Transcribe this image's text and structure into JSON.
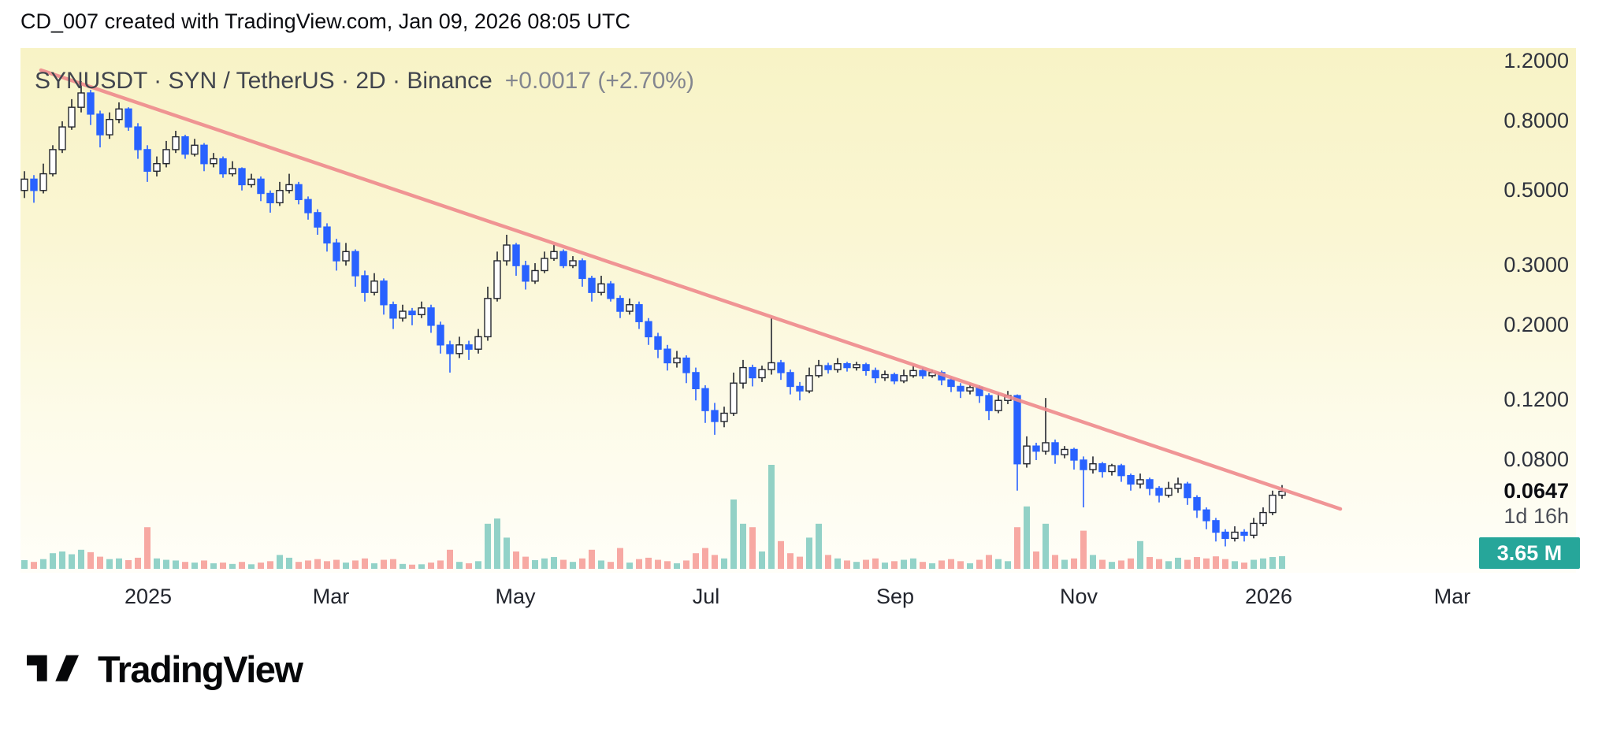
{
  "header": {
    "title": "CD_007 created with TradingView.com, Jan 09, 2026 08:05 UTC"
  },
  "chart": {
    "symbol_line": {
      "full_text": "SYNUSDT · SYN / TetherUS · 2D · Binance",
      "symbol": "SYNUSDT",
      "description": "SYN / TetherUS",
      "interval": "2D",
      "exchange": "Binance",
      "change_text": "+0.0017 (+2.70%)"
    },
    "price_scale": {
      "labels": [
        "1.2000",
        "0.8000",
        "0.5000",
        "0.3000",
        "0.2000",
        "0.1200",
        "0.0800"
      ],
      "last_price": "0.0647",
      "countdown": "1d 16h",
      "volume_label": "3.65 M"
    },
    "time_scale": [
      "2025",
      "Mar",
      "May",
      "Jul",
      "Sep",
      "Nov",
      "2026",
      "Mar"
    ],
    "colors": {
      "up_fill": "#ffffff",
      "up_border": "#23262e",
      "down": "#2962ff",
      "vol_up": "#26a69a",
      "vol_down": "#ef5350",
      "trendline": "#ef8a8d",
      "badge": "#26a69a",
      "background_top": "#f8f3c6",
      "background_bottom": "#fffef8"
    }
  },
  "chart_data": {
    "type": "candlestick+volume",
    "title": "SYNUSDT · SYN / TetherUS · 2D · Binance",
    "y_axis": {
      "scale": "log",
      "ticks": [
        1.2,
        0.8,
        0.5,
        0.3,
        0.2,
        0.12,
        0.08
      ],
      "last_price": 0.0647
    },
    "x_axis": {
      "ticks": [
        "2025",
        "Mar",
        "May",
        "Jul",
        "Sep",
        "Nov",
        "2026",
        "Mar"
      ]
    },
    "change": {
      "abs": 0.0017,
      "pct": 2.7
    },
    "current_volume_m": 3.65,
    "bar_countdown": "1d 16h",
    "trendline": {
      "from_price": 1.13,
      "to_price": 0.058
    },
    "columns": [
      "open",
      "high",
      "low",
      "close"
    ],
    "candles": [
      [
        0.5,
        0.57,
        0.475,
        0.54
      ],
      [
        0.54,
        0.555,
        0.46,
        0.5
      ],
      [
        0.5,
        0.6,
        0.49,
        0.56
      ],
      [
        0.56,
        0.68,
        0.55,
        0.66
      ],
      [
        0.66,
        0.8,
        0.645,
        0.77
      ],
      [
        0.77,
        0.93,
        0.755,
        0.88
      ],
      [
        0.88,
        1.05,
        0.85,
        0.97
      ],
      [
        0.97,
        0.99,
        0.78,
        0.84
      ],
      [
        0.84,
        0.86,
        0.67,
        0.73
      ],
      [
        0.73,
        0.85,
        0.71,
        0.81
      ],
      [
        0.81,
        0.91,
        0.79,
        0.87
      ],
      [
        0.87,
        0.88,
        0.75,
        0.77
      ],
      [
        0.77,
        0.79,
        0.62,
        0.66
      ],
      [
        0.66,
        0.68,
        0.53,
        0.57
      ],
      [
        0.57,
        0.63,
        0.55,
        0.6
      ],
      [
        0.6,
        0.7,
        0.585,
        0.66
      ],
      [
        0.66,
        0.75,
        0.645,
        0.72
      ],
      [
        0.72,
        0.73,
        0.62,
        0.64
      ],
      [
        0.64,
        0.71,
        0.63,
        0.68
      ],
      [
        0.68,
        0.69,
        0.57,
        0.6
      ],
      [
        0.6,
        0.645,
        0.585,
        0.62
      ],
      [
        0.62,
        0.63,
        0.545,
        0.56
      ],
      [
        0.56,
        0.61,
        0.55,
        0.58
      ],
      [
        0.58,
        0.585,
        0.5,
        0.52
      ],
      [
        0.52,
        0.56,
        0.51,
        0.54
      ],
      [
        0.54,
        0.55,
        0.465,
        0.49
      ],
      [
        0.49,
        0.5,
        0.43,
        0.46
      ],
      [
        0.46,
        0.53,
        0.45,
        0.5
      ],
      [
        0.5,
        0.56,
        0.49,
        0.52
      ],
      [
        0.52,
        0.53,
        0.455,
        0.47
      ],
      [
        0.47,
        0.48,
        0.41,
        0.43
      ],
      [
        0.43,
        0.44,
        0.37,
        0.39
      ],
      [
        0.39,
        0.4,
        0.33,
        0.35
      ],
      [
        0.35,
        0.36,
        0.29,
        0.31
      ],
      [
        0.31,
        0.35,
        0.3,
        0.33
      ],
      [
        0.33,
        0.335,
        0.26,
        0.28
      ],
      [
        0.28,
        0.29,
        0.235,
        0.25
      ],
      [
        0.25,
        0.285,
        0.245,
        0.27
      ],
      [
        0.27,
        0.275,
        0.215,
        0.23
      ],
      [
        0.23,
        0.235,
        0.195,
        0.21
      ],
      [
        0.21,
        0.23,
        0.205,
        0.22
      ],
      [
        0.22,
        0.225,
        0.2,
        0.215
      ],
      [
        0.215,
        0.235,
        0.21,
        0.225
      ],
      [
        0.225,
        0.23,
        0.19,
        0.2
      ],
      [
        0.2,
        0.205,
        0.165,
        0.175
      ],
      [
        0.175,
        0.18,
        0.145,
        0.165
      ],
      [
        0.165,
        0.185,
        0.16,
        0.175
      ],
      [
        0.175,
        0.18,
        0.158,
        0.17
      ],
      [
        0.17,
        0.195,
        0.165,
        0.185
      ],
      [
        0.185,
        0.26,
        0.18,
        0.24
      ],
      [
        0.24,
        0.33,
        0.235,
        0.31
      ],
      [
        0.31,
        0.37,
        0.3,
        0.345
      ],
      [
        0.345,
        0.35,
        0.28,
        0.3
      ],
      [
        0.3,
        0.31,
        0.255,
        0.27
      ],
      [
        0.27,
        0.305,
        0.265,
        0.29
      ],
      [
        0.29,
        0.33,
        0.285,
        0.315
      ],
      [
        0.315,
        0.345,
        0.31,
        0.33
      ],
      [
        0.33,
        0.335,
        0.295,
        0.3
      ],
      [
        0.3,
        0.32,
        0.295,
        0.31
      ],
      [
        0.31,
        0.315,
        0.26,
        0.275
      ],
      [
        0.275,
        0.28,
        0.235,
        0.25
      ],
      [
        0.25,
        0.28,
        0.245,
        0.265
      ],
      [
        0.265,
        0.27,
        0.235,
        0.24
      ],
      [
        0.24,
        0.245,
        0.21,
        0.22
      ],
      [
        0.22,
        0.24,
        0.215,
        0.23
      ],
      [
        0.23,
        0.235,
        0.195,
        0.205
      ],
      [
        0.205,
        0.21,
        0.175,
        0.185
      ],
      [
        0.185,
        0.19,
        0.16,
        0.17
      ],
      [
        0.17,
        0.175,
        0.147,
        0.155
      ],
      [
        0.155,
        0.168,
        0.15,
        0.16
      ],
      [
        0.16,
        0.163,
        0.135,
        0.145
      ],
      [
        0.145,
        0.15,
        0.12,
        0.13
      ],
      [
        0.13,
        0.133,
        0.103,
        0.112
      ],
      [
        0.112,
        0.118,
        0.095,
        0.104
      ],
      [
        0.104,
        0.115,
        0.1,
        0.11
      ],
      [
        0.11,
        0.145,
        0.108,
        0.135
      ],
      [
        0.135,
        0.158,
        0.13,
        0.15
      ],
      [
        0.15,
        0.153,
        0.132,
        0.14
      ],
      [
        0.14,
        0.152,
        0.136,
        0.148
      ],
      [
        0.148,
        0.21,
        0.143,
        0.155
      ],
      [
        0.155,
        0.158,
        0.138,
        0.145
      ],
      [
        0.145,
        0.148,
        0.125,
        0.132
      ],
      [
        0.132,
        0.136,
        0.12,
        0.128
      ],
      [
        0.128,
        0.15,
        0.126,
        0.142
      ],
      [
        0.142,
        0.158,
        0.14,
        0.152
      ],
      [
        0.152,
        0.155,
        0.144,
        0.148
      ],
      [
        0.148,
        0.16,
        0.145,
        0.154
      ],
      [
        0.154,
        0.156,
        0.146,
        0.15
      ],
      [
        0.15,
        0.156,
        0.147,
        0.153
      ],
      [
        0.153,
        0.155,
        0.142,
        0.147
      ],
      [
        0.147,
        0.15,
        0.135,
        0.14
      ],
      [
        0.14,
        0.147,
        0.137,
        0.143
      ],
      [
        0.143,
        0.145,
        0.134,
        0.137
      ],
      [
        0.137,
        0.148,
        0.135,
        0.142
      ],
      [
        0.142,
        0.152,
        0.14,
        0.147
      ],
      [
        0.147,
        0.15,
        0.139,
        0.142
      ],
      [
        0.142,
        0.148,
        0.14,
        0.145
      ],
      [
        0.145,
        0.147,
        0.133,
        0.138
      ],
      [
        0.138,
        0.14,
        0.127,
        0.132
      ],
      [
        0.132,
        0.135,
        0.122,
        0.128
      ],
      [
        0.128,
        0.134,
        0.125,
        0.131
      ],
      [
        0.131,
        0.133,
        0.118,
        0.124
      ],
      [
        0.124,
        0.126,
        0.105,
        0.112
      ],
      [
        0.112,
        0.126,
        0.11,
        0.12
      ],
      [
        0.12,
        0.128,
        0.117,
        0.124
      ],
      [
        0.124,
        0.125,
        0.065,
        0.078
      ],
      [
        0.078,
        0.094,
        0.076,
        0.088
      ],
      [
        0.088,
        0.09,
        0.08,
        0.085
      ],
      [
        0.085,
        0.122,
        0.083,
        0.09
      ],
      [
        0.09,
        0.092,
        0.078,
        0.083
      ],
      [
        0.083,
        0.088,
        0.081,
        0.086
      ],
      [
        0.086,
        0.087,
        0.075,
        0.08
      ],
      [
        0.08,
        0.082,
        0.058,
        0.075
      ],
      [
        0.075,
        0.082,
        0.073,
        0.078
      ],
      [
        0.078,
        0.079,
        0.071,
        0.074
      ],
      [
        0.074,
        0.078,
        0.072,
        0.077
      ],
      [
        0.077,
        0.078,
        0.069,
        0.072
      ],
      [
        0.072,
        0.073,
        0.065,
        0.068
      ],
      [
        0.068,
        0.073,
        0.066,
        0.07
      ],
      [
        0.07,
        0.071,
        0.063,
        0.066
      ],
      [
        0.066,
        0.067,
        0.06,
        0.063
      ],
      [
        0.063,
        0.069,
        0.062,
        0.066
      ],
      [
        0.066,
        0.071,
        0.064,
        0.068
      ],
      [
        0.068,
        0.069,
        0.059,
        0.062
      ],
      [
        0.062,
        0.063,
        0.054,
        0.057
      ],
      [
        0.057,
        0.058,
        0.05,
        0.053
      ],
      [
        0.053,
        0.054,
        0.046,
        0.049
      ],
      [
        0.049,
        0.05,
        0.0445,
        0.047
      ],
      [
        0.047,
        0.051,
        0.046,
        0.049
      ],
      [
        0.049,
        0.05,
        0.046,
        0.048
      ],
      [
        0.048,
        0.054,
        0.047,
        0.052
      ],
      [
        0.052,
        0.058,
        0.051,
        0.056
      ],
      [
        0.056,
        0.065,
        0.055,
        0.063
      ],
      [
        0.063,
        0.0675,
        0.0615,
        0.0647
      ]
    ],
    "volumes_m": [
      2.5,
      2.0,
      2.8,
      4.5,
      5.0,
      4.2,
      5.5,
      4.8,
      3.5,
      2.8,
      3.0,
      2.5,
      3.2,
      12.0,
      3.0,
      2.6,
      2.4,
      2.0,
      1.8,
      2.4,
      1.6,
      1.8,
      1.4,
      2.0,
      1.3,
      1.8,
      2.2,
      4.0,
      3.2,
      2.0,
      2.4,
      2.8,
      2.2,
      2.6,
      1.8,
      2.4,
      3.0,
      1.6,
      2.6,
      2.8,
      1.4,
      1.2,
      1.3,
      1.8,
      2.4,
      5.5,
      2.0,
      1.6,
      2.2,
      13.0,
      14.5,
      9.0,
      5.0,
      3.5,
      2.5,
      3.0,
      3.4,
      2.6,
      2.0,
      3.0,
      5.5,
      2.4,
      2.0,
      6.0,
      1.8,
      2.8,
      3.2,
      2.6,
      2.2,
      1.6,
      2.4,
      4.5,
      6.0,
      4.0,
      3.0,
      20.0,
      13.0,
      12.0,
      5.0,
      30.0,
      8.0,
      4.5,
      3.5,
      9.0,
      13.0,
      4.0,
      3.0,
      2.4,
      2.0,
      2.6,
      3.0,
      1.8,
      2.2,
      2.6,
      3.0,
      2.0,
      1.6,
      2.4,
      2.8,
      2.2,
      1.6,
      2.6,
      4.0,
      2.8,
      2.2,
      12.0,
      18.0,
      5.0,
      13.0,
      4.0,
      2.6,
      3.0,
      11.0,
      4.0,
      2.6,
      2.0,
      2.4,
      3.0,
      8.0,
      3.4,
      2.8,
      2.2,
      3.2,
      2.6,
      3.4,
      3.0,
      3.6,
      2.8,
      2.2,
      1.8,
      2.6,
      3.0,
      3.4,
      3.65
    ]
  },
  "footer": {
    "brand": "TradingView"
  }
}
